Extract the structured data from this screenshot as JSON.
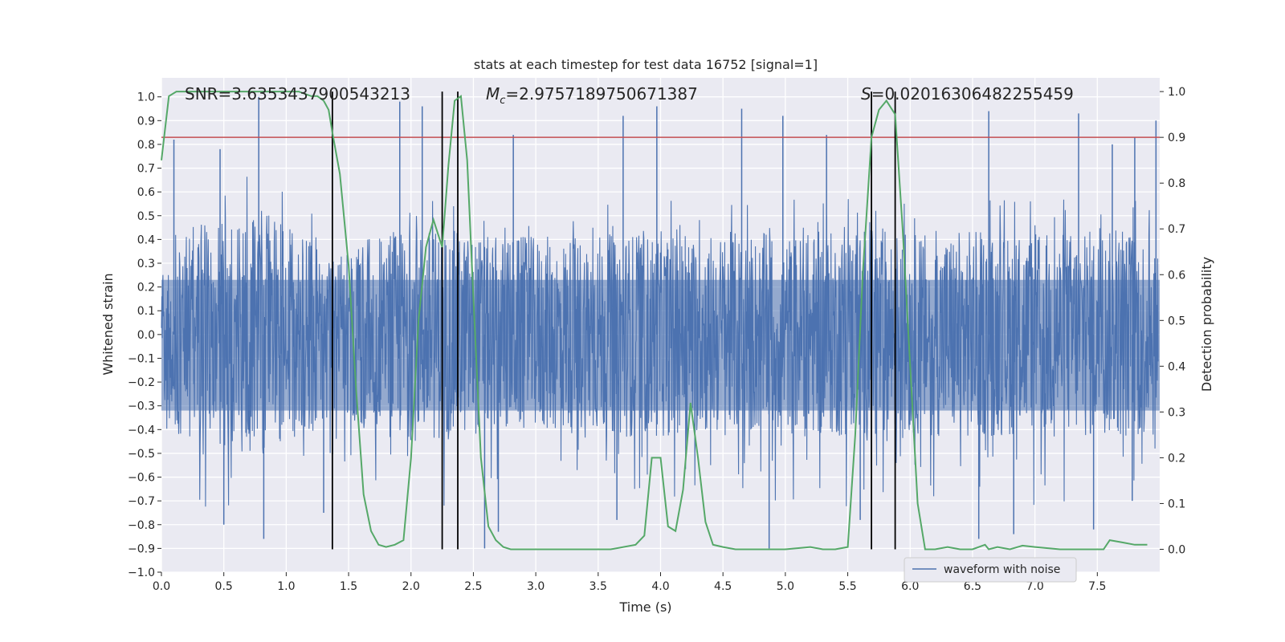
{
  "chart_data": {
    "type": "line",
    "title": "stats at each timestep for test data 16752 [signal=1]",
    "xlabel": "Time (s)",
    "ylabel": "Whitened strain",
    "y2label": "Detection probability",
    "xlim": [
      0.0,
      8.0
    ],
    "ylim": [
      -1.0,
      1.08
    ],
    "y2lim": [
      -0.05,
      1.03
    ],
    "x_ticks": [
      0.0,
      0.5,
      1.0,
      1.5,
      2.0,
      2.5,
      3.0,
      3.5,
      4.0,
      4.5,
      5.0,
      5.5,
      6.0,
      6.5,
      7.0,
      7.5
    ],
    "y_ticks": [
      -1.0,
      -0.9,
      -0.8,
      -0.7,
      -0.6,
      -0.5,
      -0.4,
      -0.3,
      -0.2,
      -0.1,
      0.0,
      0.1,
      0.2,
      0.3,
      0.4,
      0.5,
      0.6,
      0.7,
      0.8,
      0.9,
      1.0
    ],
    "y2_ticks": [
      0.0,
      0.1,
      0.2,
      0.3,
      0.4,
      0.5,
      0.6,
      0.7,
      0.8,
      0.9,
      1.0
    ],
    "grid": true,
    "legend": {
      "position": "lower-center-right",
      "entries": [
        "waveform with noise"
      ]
    },
    "annotations": [
      {
        "id": "snr",
        "text": "SNR=3.6353437900543213"
      },
      {
        "id": "mc_prefix",
        "text": "M"
      },
      {
        "id": "mc_sub",
        "text": "c"
      },
      {
        "id": "mc_value",
        "text": "=2.9757189750671387"
      },
      {
        "id": "s_prefix",
        "text": "S"
      },
      {
        "id": "s_value",
        "text": "=0.020163064822554​59"
      }
    ],
    "threshold_y2": 0.9,
    "vertical_lines_x": [
      1.37,
      2.25,
      2.375,
      5.69,
      5.88
    ],
    "series": [
      {
        "name": "waveform with noise",
        "axis": "left",
        "description_kind": "noisy whitened strain, dense samples",
        "envelope_top": [
          [
            0.0,
            0.56
          ],
          [
            0.2,
            0.6
          ],
          [
            0.4,
            0.63
          ],
          [
            0.6,
            0.65
          ],
          [
            0.8,
            0.7
          ],
          [
            1.0,
            0.6
          ],
          [
            1.2,
            0.55
          ],
          [
            1.4,
            0.42
          ],
          [
            1.6,
            0.52
          ],
          [
            1.8,
            0.58
          ],
          [
            2.0,
            0.6
          ],
          [
            2.2,
            0.6
          ],
          [
            2.4,
            0.58
          ],
          [
            2.6,
            0.55
          ],
          [
            2.8,
            0.55
          ],
          [
            3.0,
            0.55
          ],
          [
            3.2,
            0.56
          ],
          [
            3.4,
            0.58
          ],
          [
            3.6,
            0.57
          ],
          [
            3.8,
            0.58
          ],
          [
            4.0,
            0.58
          ],
          [
            4.2,
            0.55
          ],
          [
            4.4,
            0.57
          ],
          [
            4.6,
            0.58
          ],
          [
            4.8,
            0.57
          ],
          [
            5.0,
            0.56
          ],
          [
            5.2,
            0.58
          ],
          [
            5.4,
            0.58
          ],
          [
            5.6,
            0.6
          ],
          [
            5.8,
            0.6
          ],
          [
            6.0,
            0.58
          ],
          [
            6.2,
            0.57
          ],
          [
            6.4,
            0.6
          ],
          [
            6.6,
            0.58
          ],
          [
            6.8,
            0.57
          ],
          [
            7.0,
            0.58
          ],
          [
            7.2,
            0.58
          ],
          [
            7.4,
            0.6
          ],
          [
            7.6,
            0.58
          ],
          [
            7.8,
            0.6
          ],
          [
            8.0,
            0.58
          ]
        ],
        "peak_spikes": [
          [
            0.78,
            1.0
          ],
          [
            0.1,
            0.82
          ],
          [
            1.91,
            0.98
          ],
          [
            2.09,
            0.96
          ],
          [
            3.7,
            0.92
          ],
          [
            3.97,
            0.96
          ],
          [
            4.65,
            0.95
          ],
          [
            4.98,
            0.92
          ],
          [
            6.63,
            0.94
          ],
          [
            7.35,
            0.93
          ],
          [
            7.62,
            0.8
          ],
          [
            7.8,
            0.83
          ],
          [
            7.97,
            0.9
          ],
          [
            0.47,
            0.78
          ],
          [
            2.82,
            0.84
          ],
          [
            5.33,
            0.84
          ]
        ],
        "trough_spikes": [
          [
            0.82,
            -0.86
          ],
          [
            2.59,
            -0.9
          ],
          [
            4.87,
            -0.9
          ],
          [
            6.55,
            -0.86
          ],
          [
            0.5,
            -0.8
          ],
          [
            1.3,
            -0.75
          ],
          [
            3.65,
            -0.78
          ],
          [
            5.6,
            -0.78
          ],
          [
            6.83,
            -0.84
          ],
          [
            7.47,
            -0.82
          ],
          [
            7.78,
            -0.7
          ],
          [
            2.7,
            -0.83
          ]
        ]
      },
      {
        "name": "",
        "axis": "right",
        "description_kind": "detection probability",
        "x": [
          0.0,
          0.06,
          0.12,
          0.2,
          0.3,
          0.4,
          0.5,
          0.6,
          0.7,
          0.8,
          0.9,
          1.0,
          1.1,
          1.2,
          1.25,
          1.3,
          1.34,
          1.37,
          1.43,
          1.5,
          1.56,
          1.62,
          1.68,
          1.74,
          1.8,
          1.87,
          1.94,
          2.0,
          2.06,
          2.12,
          2.18,
          2.25,
          2.3,
          2.35,
          2.4,
          2.45,
          2.5,
          2.56,
          2.62,
          2.68,
          2.74,
          2.8,
          3.0,
          3.3,
          3.6,
          3.8,
          3.87,
          3.93,
          4.0,
          4.06,
          4.12,
          4.18,
          4.24,
          4.3,
          4.36,
          4.42,
          4.5,
          4.6,
          4.8,
          5.0,
          5.2,
          5.3,
          5.4,
          5.5,
          5.56,
          5.62,
          5.69,
          5.75,
          5.81,
          5.88,
          5.94,
          6.0,
          6.06,
          6.12,
          6.2,
          6.3,
          6.4,
          6.5,
          6.6,
          6.63,
          6.7,
          6.8,
          6.9,
          7.0,
          7.2,
          7.4,
          7.55,
          7.6,
          7.7,
          7.8,
          7.9
        ],
        "values": [
          0.85,
          0.99,
          1.0,
          1.0,
          1.0,
          1.0,
          1.0,
          1.0,
          1.0,
          1.0,
          1.0,
          1.0,
          1.0,
          0.99,
          0.99,
          0.98,
          0.96,
          0.91,
          0.82,
          0.62,
          0.35,
          0.12,
          0.04,
          0.01,
          0.005,
          0.01,
          0.02,
          0.2,
          0.5,
          0.66,
          0.72,
          0.66,
          0.84,
          0.98,
          0.99,
          0.85,
          0.55,
          0.2,
          0.05,
          0.02,
          0.005,
          0.0,
          0.0,
          0.0,
          0.0,
          0.01,
          0.03,
          0.2,
          0.2,
          0.05,
          0.04,
          0.13,
          0.32,
          0.2,
          0.06,
          0.01,
          0.005,
          0.0,
          0.0,
          0.0,
          0.005,
          0.0,
          0.0,
          0.005,
          0.25,
          0.6,
          0.9,
          0.96,
          0.98,
          0.95,
          0.7,
          0.4,
          0.1,
          0.0,
          0.0,
          0.005,
          0.0,
          0.0,
          0.01,
          0.0,
          0.005,
          0.0,
          0.008,
          0.005,
          0.0,
          0.0,
          0.0,
          0.02,
          0.015,
          0.01,
          0.01
        ]
      }
    ],
    "colors": {
      "plot_bg": "#eaeaf2",
      "grid": "#ffffff",
      "waveform": "#4c72b0",
      "probability": "#55a868",
      "threshold": "#c44e52",
      "vlines": "#000000"
    }
  }
}
